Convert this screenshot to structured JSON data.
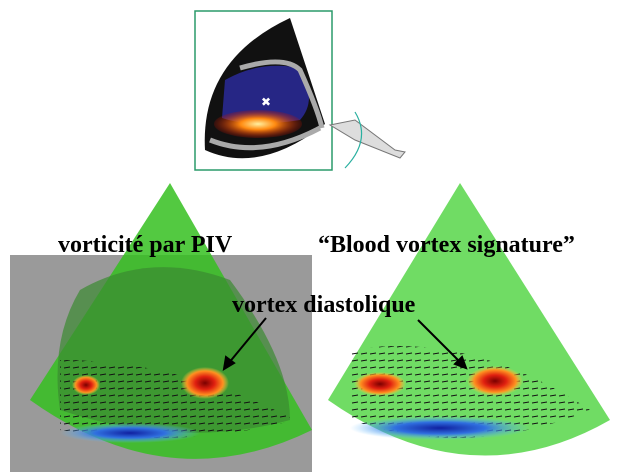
{
  "labels": {
    "left_title": "vorticité par PIV",
    "right_title": "“Blood vortex signature”",
    "annotation": "vortex diastolique"
  }
}
